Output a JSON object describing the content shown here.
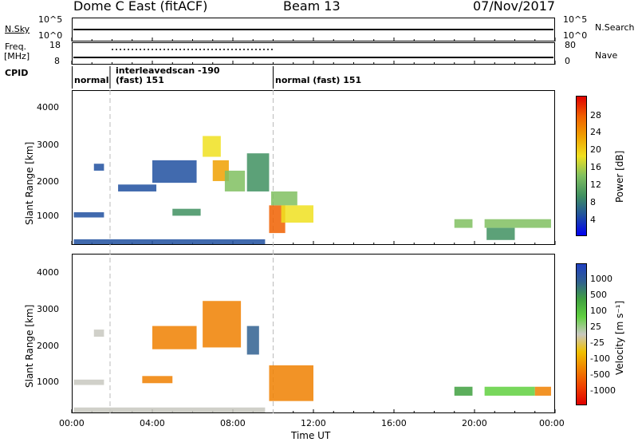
{
  "header": {
    "station_title": "Dome C East (fitACF)",
    "beam": "Beam 13",
    "date": "07/Nov/2017"
  },
  "noise_panel": {
    "left_label": "N.Sky",
    "left_ticks": [
      "10^5",
      "10^0"
    ],
    "right_ticks": [
      "10^5",
      "10^0"
    ],
    "right_label": "N.Search"
  },
  "freq_panel": {
    "left_label_1": "Freq.",
    "left_label_2": "[MHz]",
    "left_ticks": [
      "18",
      "8"
    ],
    "right_ticks": [
      "80",
      "0"
    ],
    "right_label": "Nave"
  },
  "cpid_panel": {
    "label": "CPID",
    "segments": [
      {
        "name": "normal",
        "start_hour": 0.0,
        "end_hour": 1.9
      },
      {
        "name": "interleavedscan -190\n(fast) 151",
        "start_hour": 1.9,
        "end_hour": 10.0
      },
      {
        "name": "normal (fast) 151",
        "start_hour": 10.0,
        "end_hour": 24.0
      }
    ],
    "seg_label_1": "normal",
    "seg_label_2a": "interleavedscan -190",
    "seg_label_2b": "(fast) 151",
    "seg_label_3": "normal (fast) 151"
  },
  "power_panel": {
    "ylabel": "Slant Range [km]",
    "yticks": [
      "4000",
      "3000",
      "2000",
      "1000"
    ],
    "colorbar_label": "Power [dB]",
    "colorbar_ticks": [
      "28",
      "24",
      "20",
      "16",
      "12",
      "8",
      "4"
    ],
    "colorbar_colors": [
      "#e00000",
      "#f06000",
      "#f0a000",
      "#f0e020",
      "#80c060",
      "#409060",
      "#2050a0",
      "#0000f0"
    ]
  },
  "velocity_panel": {
    "ylabel": "Slant Range [km]",
    "yticks": [
      "4000",
      "3000",
      "2000",
      "1000"
    ],
    "colorbar_label": "Velocity [m s⁻¹]",
    "colorbar_ticks": [
      "1000",
      "500",
      "100",
      "25",
      "-25",
      "-100",
      "-500",
      "-1000"
    ],
    "colorbar_colors": [
      "#2040c0",
      "#306090",
      "#40a040",
      "#60d040",
      "#c8c8c0",
      "#f0c000",
      "#f08000",
      "#f04000",
      "#e00000"
    ]
  },
  "x_axis": {
    "label": "Time UT",
    "ticks": [
      "00:00",
      "04:00",
      "08:00",
      "12:00",
      "16:00",
      "20:00",
      "00:00"
    ]
  },
  "chart_data": [
    {
      "type": "heatmap",
      "title": "Power [dB]",
      "xlabel": "Time UT",
      "ylabel": "Slant Range [km]",
      "xlim": [
        0,
        24
      ],
      "ylim": [
        180,
        4600
      ],
      "clim": [
        0,
        32
      ],
      "patches": [
        {
          "t0": 0.1,
          "t1": 1.6,
          "r0": 950,
          "r1": 1100,
          "v": 6
        },
        {
          "t0": 1.1,
          "t1": 1.6,
          "r0": 2300,
          "r1": 2500,
          "v": 8
        },
        {
          "t0": 2.3,
          "t1": 4.2,
          "r0": 1700,
          "r1": 1900,
          "v": 7
        },
        {
          "t0": 4.0,
          "t1": 6.2,
          "r0": 1950,
          "r1": 2600,
          "v": 8
        },
        {
          "t0": 5.0,
          "t1": 6.4,
          "r0": 1000,
          "r1": 1200,
          "v": 10
        },
        {
          "t0": 6.5,
          "t1": 7.4,
          "r0": 2700,
          "r1": 3300,
          "v": 20
        },
        {
          "t0": 7.0,
          "t1": 7.8,
          "r0": 2000,
          "r1": 2600,
          "v": 22
        },
        {
          "t0": 7.6,
          "t1": 8.6,
          "r0": 1700,
          "r1": 2300,
          "v": 14
        },
        {
          "t0": 8.7,
          "t1": 9.8,
          "r0": 1700,
          "r1": 2800,
          "v": 12
        },
        {
          "t0": 9.8,
          "t1": 10.6,
          "r0": 500,
          "r1": 1300,
          "v": 28
        },
        {
          "t0": 10.4,
          "t1": 12.0,
          "r0": 800,
          "r1": 1300,
          "v": 18
        },
        {
          "t0": 9.9,
          "t1": 11.2,
          "r0": 1300,
          "r1": 1700,
          "v": 14
        },
        {
          "t0": 19.0,
          "t1": 19.9,
          "r0": 650,
          "r1": 900,
          "v": 14
        },
        {
          "t0": 20.5,
          "t1": 23.8,
          "r0": 650,
          "r1": 900,
          "v": 16
        },
        {
          "t0": 20.6,
          "t1": 22.0,
          "r0": 300,
          "r1": 650,
          "v": 9
        },
        {
          "t0": 0.1,
          "t1": 9.6,
          "r0": 180,
          "r1": 320,
          "v": 5
        }
      ]
    },
    {
      "type": "heatmap",
      "title": "Velocity [m s⁻¹]",
      "xlabel": "Time UT",
      "ylabel": "Slant Range [km]",
      "xlim": [
        0,
        24
      ],
      "ylim": [
        180,
        4600
      ],
      "clim": [
        -1000,
        1000
      ],
      "patches": [
        {
          "t0": 0.1,
          "t1": 1.6,
          "r0": 950,
          "r1": 1100,
          "v": 0
        },
        {
          "t0": 1.1,
          "t1": 1.6,
          "r0": 2300,
          "r1": 2500,
          "v": 0
        },
        {
          "t0": 3.5,
          "t1": 5.0,
          "r0": 1000,
          "r1": 1200,
          "v": -300
        },
        {
          "t0": 4.0,
          "t1": 6.2,
          "r0": 1950,
          "r1": 2600,
          "v": -150
        },
        {
          "t0": 6.5,
          "t1": 8.4,
          "r0": 2000,
          "r1": 3300,
          "v": -200
        },
        {
          "t0": 8.7,
          "t1": 9.3,
          "r0": 1800,
          "r1": 2600,
          "v": 700
        },
        {
          "t0": 9.8,
          "t1": 12.0,
          "r0": 500,
          "r1": 1500,
          "v": -400
        },
        {
          "t0": 19.0,
          "t1": 19.9,
          "r0": 650,
          "r1": 900,
          "v": 200
        },
        {
          "t0": 20.5,
          "t1": 23.0,
          "r0": 650,
          "r1": 900,
          "v": 80
        },
        {
          "t0": 23.0,
          "t1": 23.8,
          "r0": 650,
          "r1": 900,
          "v": -150
        },
        {
          "t0": 0.1,
          "t1": 9.6,
          "r0": 180,
          "r1": 320,
          "v": 0
        }
      ]
    }
  ]
}
